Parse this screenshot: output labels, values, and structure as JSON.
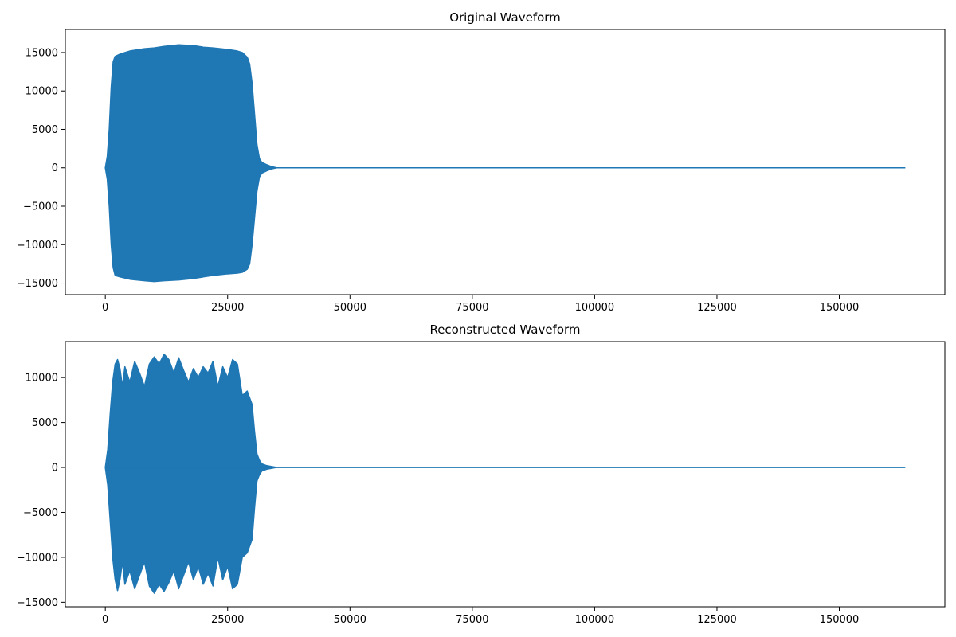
{
  "chart_data": [
    {
      "type": "line",
      "title": "Original Waveform",
      "xlabel": "",
      "ylabel": "",
      "xlim": [
        -8170,
        171570
      ],
      "ylim": [
        -16500,
        18000
      ],
      "xticks": [
        0,
        25000,
        50000,
        75000,
        100000,
        125000,
        150000
      ],
      "xtick_labels": [
        "0",
        "25000",
        "50000",
        "75000",
        "100000",
        "125000",
        "150000"
      ],
      "yticks": [
        -15000,
        -10000,
        -5000,
        0,
        5000,
        10000,
        15000
      ],
      "ytick_labels": [
        "−15000",
        "−10000",
        "−5000",
        "0",
        "5000",
        "10000",
        "15000"
      ],
      "grid": false,
      "color": "#1f77b4",
      "sample_count": 163400,
      "envelope": {
        "x": [
          0,
          400,
          800,
          1200,
          1600,
          2000,
          3000,
          5000,
          8000,
          10000,
          12000,
          15000,
          18000,
          20000,
          22000,
          25000,
          27000,
          28000,
          29000,
          29500,
          30000,
          30500,
          31000,
          31500,
          32000,
          33000,
          34000,
          35000,
          163400
        ],
        "upper": [
          0,
          1500,
          5000,
          10500,
          13800,
          14500,
          14800,
          15200,
          15500,
          15600,
          15800,
          16000,
          15900,
          15700,
          15600,
          15400,
          15200,
          15000,
          14400,
          13500,
          11000,
          7000,
          3000,
          1200,
          700,
          400,
          150,
          0,
          0
        ],
        "lower": [
          0,
          -1500,
          -5000,
          -10000,
          -13000,
          -14000,
          -14200,
          -14500,
          -14700,
          -14800,
          -14700,
          -14600,
          -14400,
          -14200,
          -14000,
          -13800,
          -13700,
          -13600,
          -13200,
          -12500,
          -10000,
          -6500,
          -3000,
          -1200,
          -700,
          -400,
          -150,
          0,
          0
        ]
      }
    },
    {
      "type": "line",
      "title": "Reconstructed Waveform",
      "xlabel": "",
      "ylabel": "",
      "xlim": [
        -8170,
        171570
      ],
      "ylim": [
        -15500,
        14000
      ],
      "xticks": [
        0,
        25000,
        50000,
        75000,
        100000,
        125000,
        150000
      ],
      "xtick_labels": [
        "0",
        "25000",
        "50000",
        "75000",
        "100000",
        "125000",
        "150000"
      ],
      "yticks": [
        -15000,
        -10000,
        -5000,
        0,
        5000,
        10000
      ],
      "ytick_labels": [
        "−15000",
        "−10000",
        "−5000",
        "0",
        "5000",
        "10000"
      ],
      "grid": false,
      "color": "#1f77b4",
      "sample_count": 163400,
      "envelope": {
        "x": [
          0,
          500,
          1000,
          1500,
          2000,
          2500,
          3000,
          3500,
          4000,
          5000,
          6000,
          7000,
          8000,
          9000,
          10000,
          11000,
          12000,
          13000,
          14000,
          15000,
          16000,
          17000,
          18000,
          19000,
          20000,
          21000,
          22000,
          23000,
          24000,
          25000,
          26000,
          27000,
          28000,
          29000,
          30000,
          30500,
          31000,
          31500,
          32000,
          33000,
          34000,
          35000,
          163400
        ],
        "upper": [
          0,
          2000,
          6000,
          9500,
          11500,
          12000,
          11000,
          9000,
          11200,
          9500,
          11800,
          10500,
          9000,
          11500,
          12300,
          11500,
          12600,
          12000,
          10500,
          12200,
          10800,
          9500,
          11000,
          10000,
          11200,
          10500,
          11800,
          9000,
          11200,
          10000,
          12000,
          11500,
          8000,
          8500,
          7000,
          4000,
          1500,
          800,
          400,
          200,
          100,
          0,
          0
        ],
        "lower": [
          0,
          -2000,
          -6000,
          -10000,
          -12500,
          -13700,
          -12500,
          -10500,
          -13000,
          -11500,
          -13500,
          -12000,
          -10500,
          -13200,
          -14000,
          -13000,
          -13800,
          -12800,
          -11500,
          -13500,
          -12000,
          -10500,
          -12500,
          -11000,
          -13000,
          -11800,
          -13200,
          -10000,
          -12500,
          -11000,
          -13500,
          -13000,
          -10000,
          -9500,
          -8000,
          -4500,
          -1500,
          -800,
          -400,
          -200,
          -100,
          0,
          0
        ]
      }
    }
  ]
}
